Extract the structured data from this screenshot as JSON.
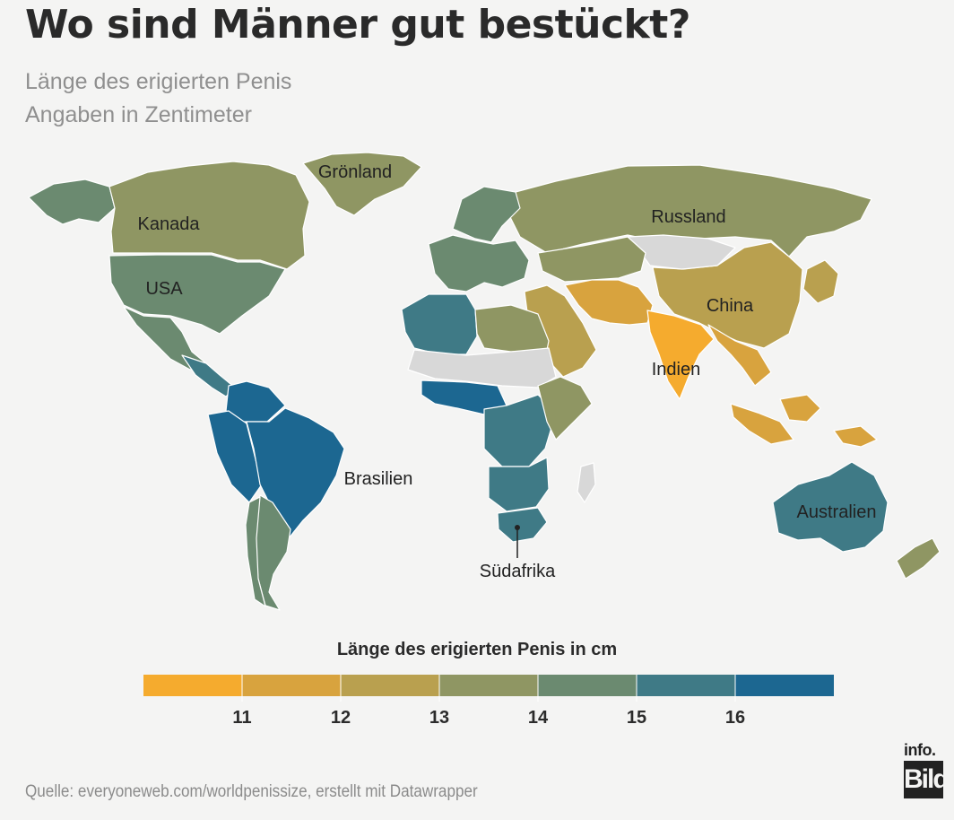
{
  "header": {
    "title": "Wo sind Männer gut bestückt?",
    "subtitle_line1": "Länge des erigierten Penis",
    "subtitle_line2": "Angaben in Zentimeter"
  },
  "map": {
    "colors": {
      "no_data": "#d8d8d8",
      "ocean": "#f4f4f3",
      "border": "#ffffff"
    },
    "labels": {
      "groenland": "Grönland",
      "kanada": "Kanada",
      "usa": "USA",
      "russland": "Russland",
      "china": "China",
      "indien": "Indien",
      "brasilien": "Brasilien",
      "suedafrika": "Südafrika",
      "australien": "Australien"
    },
    "regions": [
      {
        "id": "alaska",
        "value": 14.5
      },
      {
        "id": "kanada",
        "value": 13.5
      },
      {
        "id": "groenland",
        "value": 13.5
      },
      {
        "id": "usa",
        "value": 14.3
      },
      {
        "id": "mexiko",
        "value": 14.5
      },
      {
        "id": "zentralamerika",
        "value": 15.5
      },
      {
        "id": "kolumbien-venezuela",
        "value": 16.5
      },
      {
        "id": "ecuador-peru",
        "value": 16.8
      },
      {
        "id": "brasilien",
        "value": 16.1
      },
      {
        "id": "argentinien",
        "value": 14.5
      },
      {
        "id": "chile",
        "value": 14.2
      },
      {
        "id": "russland",
        "value": 13.2
      },
      {
        "id": "skandinavien",
        "value": 14.5
      },
      {
        "id": "europa",
        "value": 14.0
      },
      {
        "id": "china",
        "value": 12.5
      },
      {
        "id": "mongolei",
        "value": null
      },
      {
        "id": "kasachstan",
        "value": 13.0
      },
      {
        "id": "naher-osten",
        "value": 12.0
      },
      {
        "id": "iran-pakistan",
        "value": 11.8
      },
      {
        "id": "indien",
        "value": 10.5
      },
      {
        "id": "suedostasien",
        "value": 11.5
      },
      {
        "id": "japan-korea",
        "value": 12.0
      },
      {
        "id": "indonesien",
        "value": 11.6
      },
      {
        "id": "nordafrika-west",
        "value": 15.0
      },
      {
        "id": "nordafrika-ost",
        "value": 13.5
      },
      {
        "id": "sahel",
        "value": null
      },
      {
        "id": "westafrika",
        "value": 16.2
      },
      {
        "id": "zentralafrika",
        "value": 15.5
      },
      {
        "id": "ostafrika",
        "value": 13.5
      },
      {
        "id": "suedliches-afrika",
        "value": 15.5
      },
      {
        "id": "suedafrika",
        "value": 15.8
      },
      {
        "id": "madagaskar",
        "value": null
      },
      {
        "id": "australien",
        "value": 15.7
      },
      {
        "id": "neuseeland",
        "value": 13.5
      }
    ]
  },
  "legend": {
    "title": "Länge des erigierten Penis in cm",
    "colors": [
      "#f5ab2e",
      "#d8a33e",
      "#b9a04f",
      "#8f9663",
      "#6b8a70",
      "#3f7a86",
      "#1c6791"
    ],
    "tick_labels": [
      "11",
      "12",
      "13",
      "14",
      "15",
      "16"
    ]
  },
  "footer": {
    "source": "Quelle: everyoneweb.com/worldpenissize, erstellt mit Datawrapper",
    "logo_top": "info.",
    "logo_bottom": "Bild"
  }
}
